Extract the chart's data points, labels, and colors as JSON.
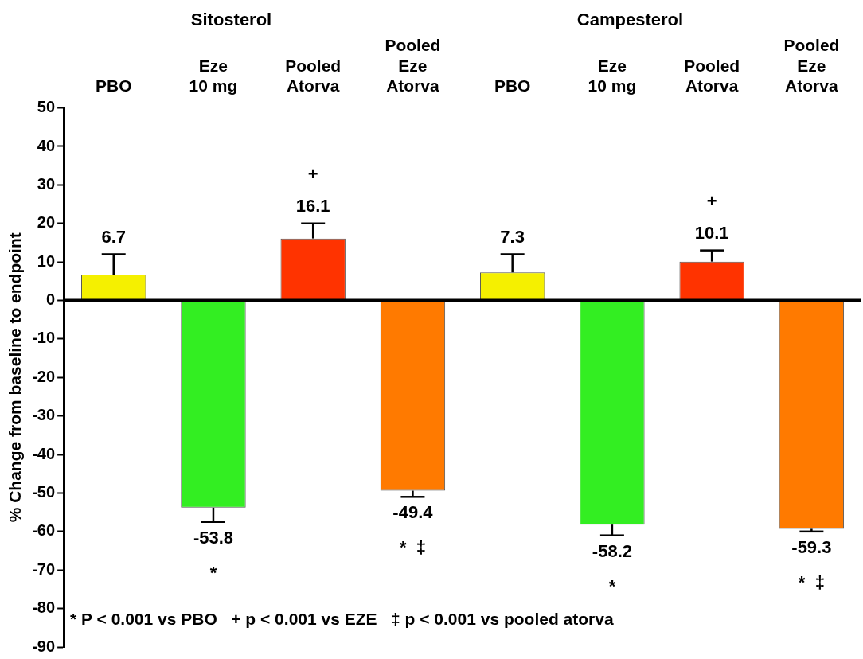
{
  "chart_data": {
    "type": "bar",
    "ylabel": "% Change from baseline to endpoint",
    "categories": [
      "PBO",
      "Eze\n10 mg",
      "Pooled\nAtorva",
      "Pooled\nEze\nAtorva",
      "PBO",
      "Eze\n10 mg",
      "Pooled\nAtorva",
      "Pooled\nEze\nAtorva"
    ],
    "values": [
      6.7,
      -53.8,
      16.1,
      -49.4,
      7.3,
      -58.2,
      10.1,
      -59.3
    ],
    "value_labels": [
      "6.7",
      "-53.8\n*",
      "+\n16.1",
      "-49.4\n*  ‡",
      "7.3",
      "-58.2\n*",
      "+\n10.1",
      "-59.3\n*  ‡"
    ],
    "colors": [
      "#f5f000",
      "#33ee22",
      "#ff3300",
      "#ff7a00",
      "#f5f000",
      "#33ee22",
      "#ff3300",
      "#ff7a00"
    ],
    "errors": [
      [
        6.7,
        12
      ],
      [
        -57.5,
        -53.8
      ],
      [
        16.1,
        20
      ],
      [
        -51,
        -49.4
      ],
      [
        7.3,
        12
      ],
      [
        -61,
        -58.2
      ],
      [
        10.1,
        13
      ],
      [
        -60,
        -59.3
      ]
    ],
    "ylim": [
      -90,
      50
    ],
    "yticks": [
      -90,
      -80,
      -70,
      -60,
      -50,
      -40,
      -30,
      -20,
      -10,
      0,
      10,
      20,
      30,
      40,
      50
    ],
    "legend": false,
    "annotations": [
      "Sitosterol",
      "Campesterol",
      "* P < 0.001 vs PBO   + p < 0.001 vs EZE   ‡ p < 0.001 vs pooled atorva"
    ]
  }
}
